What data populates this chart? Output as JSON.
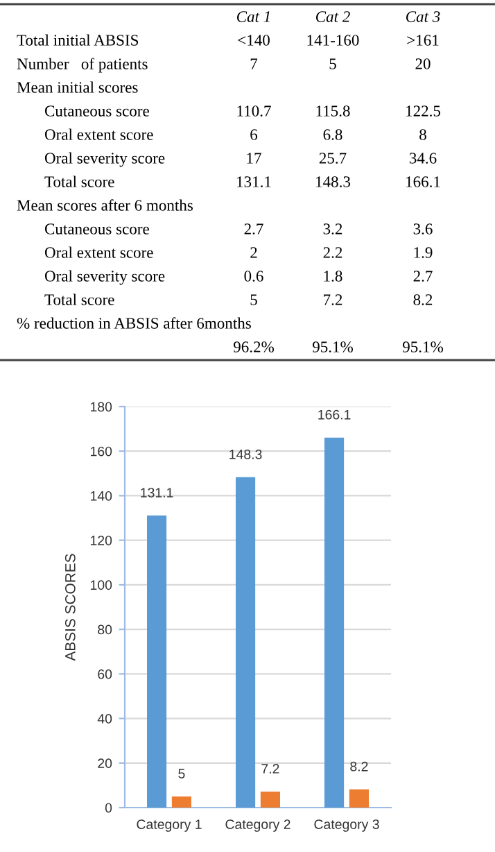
{
  "chart_data": [
    {
      "type": "other",
      "categories": [
        "Cat 1",
        "Cat 2",
        "Cat 3"
      ],
      "y_categories": [
        "Total initial ABSIS",
        "Number   of patients",
        "Mean initial scores",
        "Cutaneous score",
        "Oral extent score",
        "Oral severity score",
        "Total score",
        "Mean scores after 6 months",
        "Cutaneous score",
        "Oral extent score",
        "Oral severity score",
        "Total score",
        "% reduction in ABSIS after 6months",
        null
      ],
      "cell_labels": [
        [
          "<140",
          "141-160",
          ">161"
        ],
        [
          "7",
          "5",
          "20"
        ],
        [
          null,
          null,
          null
        ],
        [
          "110.7",
          "115.8",
          "122.5"
        ],
        [
          "6",
          "6.8",
          "8"
        ],
        [
          "17",
          "25.7",
          "34.6"
        ],
        [
          "131.1",
          "148.3",
          "166.1"
        ],
        [
          null,
          null,
          null
        ],
        [
          "2.7",
          "3.2",
          "3.6"
        ],
        [
          "2",
          "2.2",
          "1.9"
        ],
        [
          "0.6",
          "1.8",
          "2.7"
        ],
        [
          "5",
          "7.2",
          "8.2"
        ],
        [
          null,
          null,
          null
        ],
        [
          "96.2%",
          "95.1%",
          "95.1%"
        ]
      ]
    },
    {
      "type": "bar",
      "categories": [
        "Category 1",
        "Category 2",
        "Category 3"
      ],
      "series": [
        {
          "color": "#5b9bd5",
          "values": [
            131.1,
            148.3,
            166.1
          ]
        },
        {
          "color": "#ed7d31",
          "values": [
            5,
            7.2,
            8.2
          ]
        }
      ],
      "ylabel": "ABSIS SCORES",
      "ylim": [
        0,
        180
      ],
      "yticks": [
        0,
        20,
        40,
        60,
        80,
        100,
        120,
        140,
        160,
        180
      ],
      "grid": "y",
      "data_labels": true
    }
  ]
}
